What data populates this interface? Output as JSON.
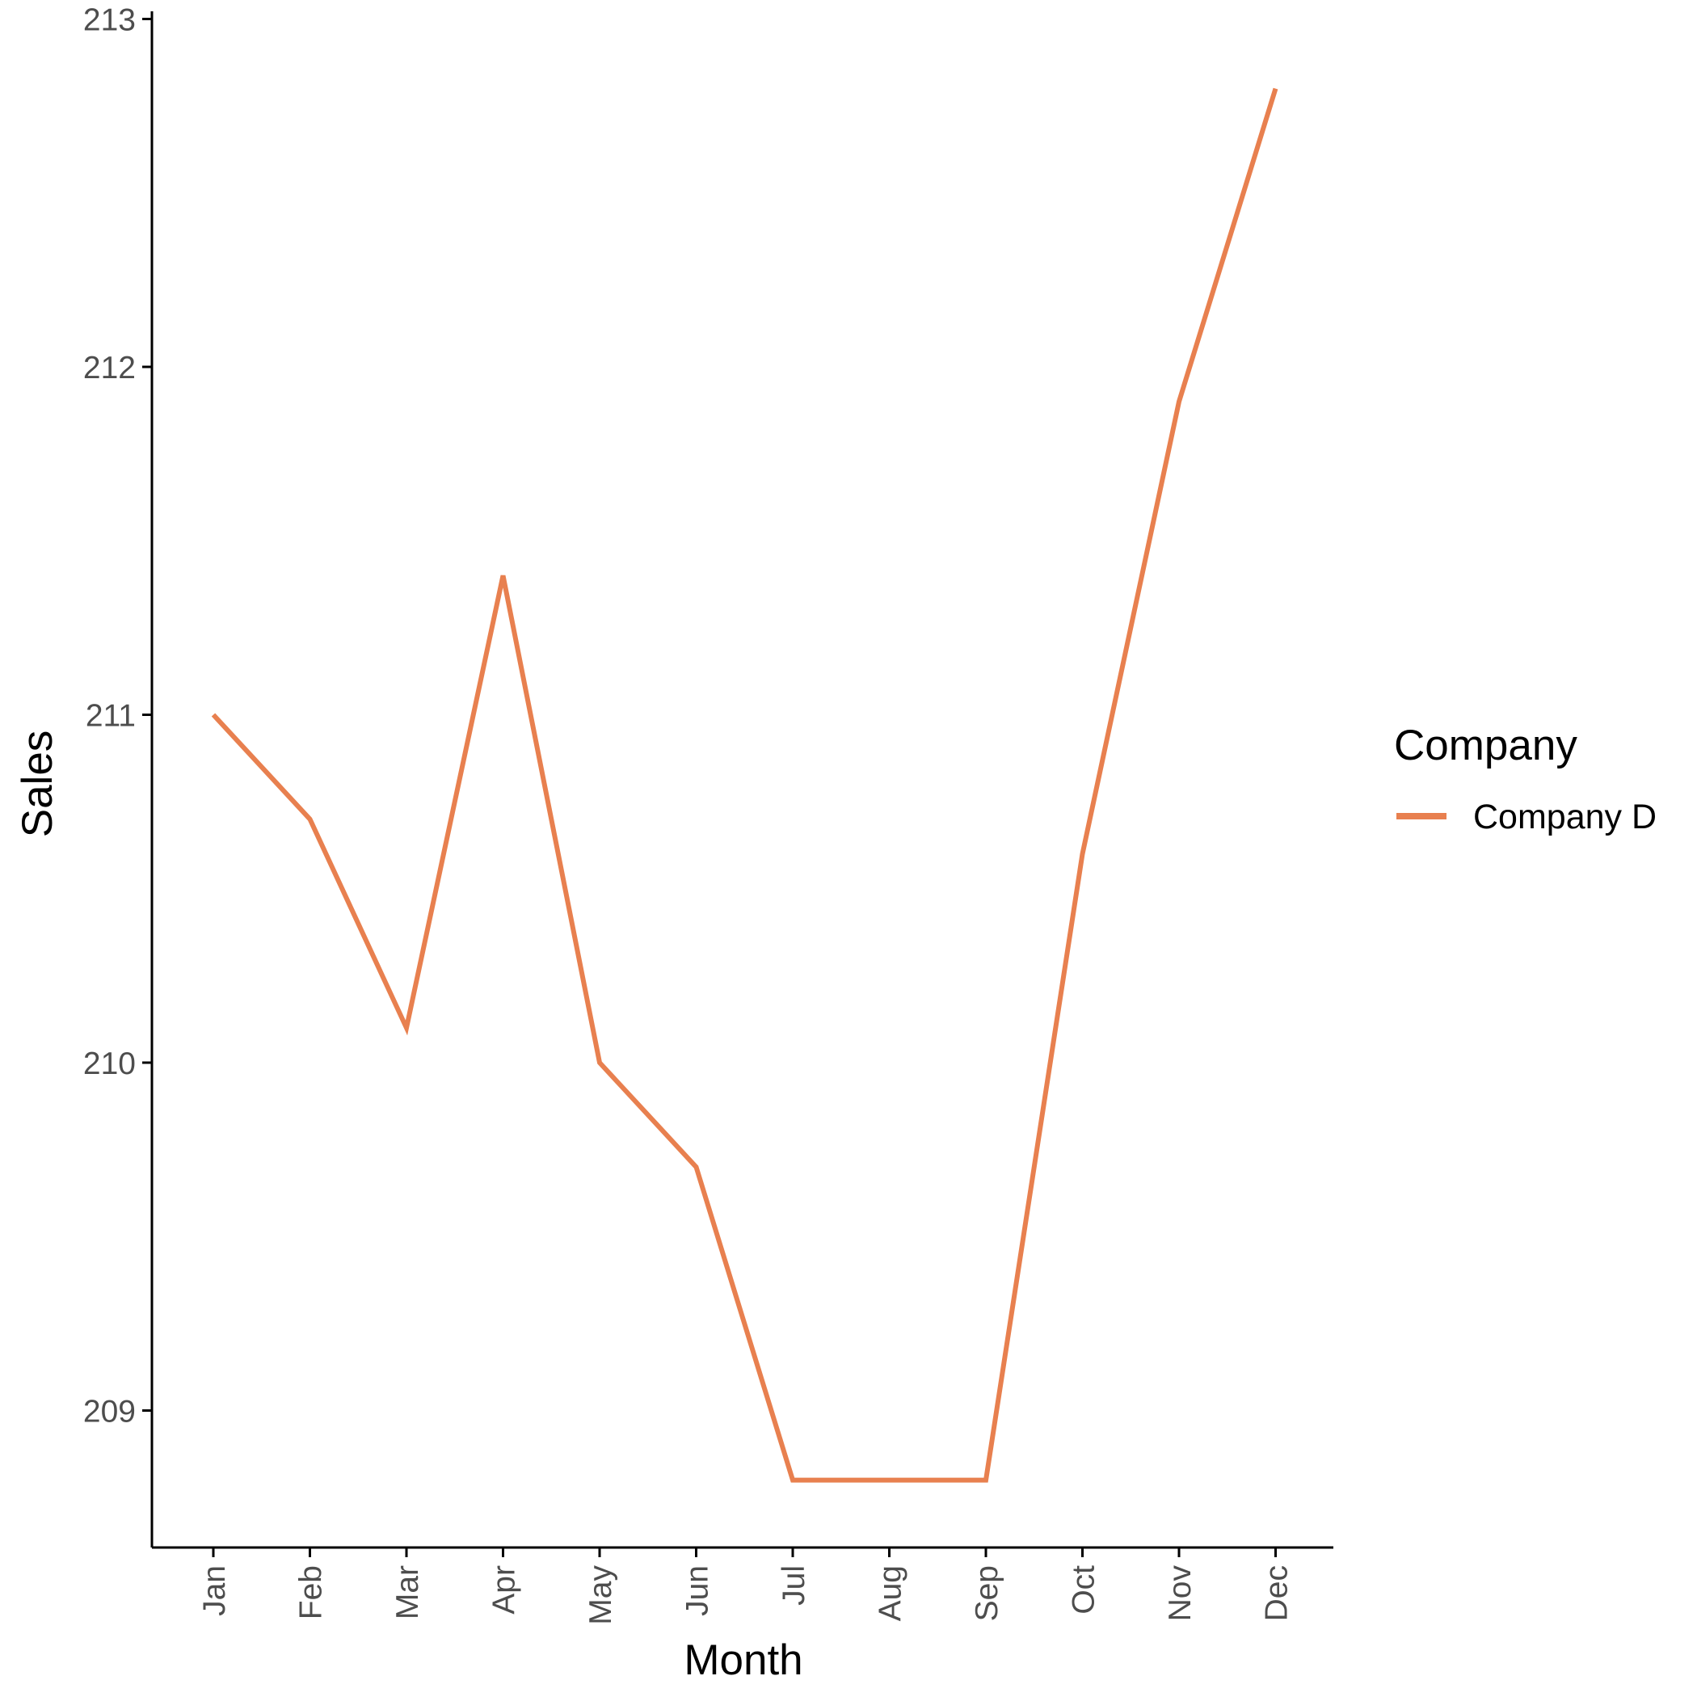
{
  "chart_data": {
    "type": "line",
    "xlabel": "Month",
    "ylabel": "Sales",
    "categories": [
      "Jan",
      "Feb",
      "Mar",
      "Apr",
      "May",
      "Jun",
      "Jul",
      "Aug",
      "Sep",
      "Oct",
      "Nov",
      "Dec"
    ],
    "series": [
      {
        "name": "Company D",
        "color": "#E8804F",
        "values": [
          211.0,
          210.7,
          210.1,
          211.4,
          210.0,
          209.7,
          208.8,
          208.8,
          208.8,
          210.6,
          211.9,
          212.8
        ]
      }
    ],
    "yticks": [
      209,
      210,
      211,
      212,
      213
    ],
    "ylim": [
      208.4,
      213.0
    ],
    "grid": false,
    "legend": {
      "title": "Company",
      "position": "right"
    }
  }
}
